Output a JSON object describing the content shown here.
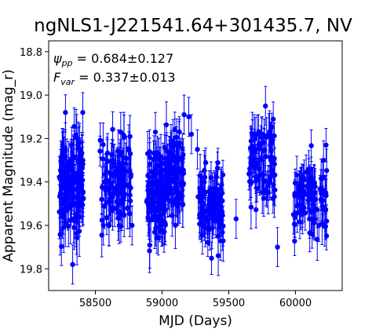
{
  "chart_data": {
    "type": "scatter",
    "title": "ngNLS1-J221541.64+301435.7, NV",
    "xlabel": "MJD (Days)",
    "ylabel": "Apparent Magnitude (mag_r)",
    "annotations": [
      {
        "symbol": "ψ",
        "sub": "pp",
        "value": " = 0.684±0.127"
      },
      {
        "symbol": "F",
        "sub": "var",
        "value": " = 0.337±0.013"
      }
    ],
    "xlim": [
      58150,
      60350
    ],
    "ylim": [
      19.9,
      18.75
    ],
    "y_inverted": true,
    "xticks": [
      58500,
      59000,
      59500,
      60000
    ],
    "xtick_labels": [
      "58500",
      "59000",
      "59500",
      "60000"
    ],
    "yticks": [
      18.8,
      19.0,
      19.2,
      19.4,
      19.6,
      19.8
    ],
    "ytick_labels": [
      "18.8",
      "19.0",
      "19.2",
      "19.4",
      "19.6",
      "19.8"
    ],
    "grid": false,
    "marker_color": "#0000ff",
    "seasons": [
      {
        "start": 58225,
        "end": 58410,
        "count": 160,
        "center": 19.42,
        "spread": 0.11,
        "err": 0.1
      },
      {
        "start": 58535,
        "end": 58595,
        "count": 20,
        "center": 19.38,
        "spread": 0.1,
        "err": 0.09
      },
      {
        "start": 58600,
        "end": 58770,
        "count": 90,
        "center": 19.4,
        "spread": 0.1,
        "err": 0.09
      },
      {
        "start": 58880,
        "end": 59030,
        "count": 110,
        "center": 19.45,
        "spread": 0.1,
        "err": 0.09
      },
      {
        "start": 59030,
        "end": 59165,
        "count": 90,
        "center": 19.35,
        "spread": 0.1,
        "err": 0.09
      },
      {
        "start": 59270,
        "end": 59460,
        "count": 110,
        "center": 19.5,
        "spread": 0.09,
        "err": 0.08
      },
      {
        "start": 59650,
        "end": 59850,
        "count": 90,
        "center": 19.32,
        "spread": 0.1,
        "err": 0.08
      },
      {
        "start": 59990,
        "end": 60240,
        "count": 90,
        "center": 19.48,
        "spread": 0.09,
        "err": 0.08
      }
    ],
    "outliers": [
      {
        "x": 58690,
        "y": 19.17
      },
      {
        "x": 58950,
        "y": 19.17
      },
      {
        "x": 59165,
        "y": 19.09
      },
      {
        "x": 59200,
        "y": 19.1
      },
      {
        "x": 59220,
        "y": 19.18
      },
      {
        "x": 59265,
        "y": 19.25
      },
      {
        "x": 59555,
        "y": 19.57
      },
      {
        "x": 59690,
        "y": 19.18
      },
      {
        "x": 59775,
        "y": 19.05
      },
      {
        "x": 59865,
        "y": 19.7
      },
      {
        "x": 59985,
        "y": 19.55
      },
      {
        "x": 60105,
        "y": 19.57
      },
      {
        "x": 58560,
        "y": 19.6
      },
      {
        "x": 58775,
        "y": 19.6
      },
      {
        "x": 58330,
        "y": 19.78
      },
      {
        "x": 59420,
        "y": 19.65
      },
      {
        "x": 60210,
        "y": 19.3
      }
    ]
  }
}
